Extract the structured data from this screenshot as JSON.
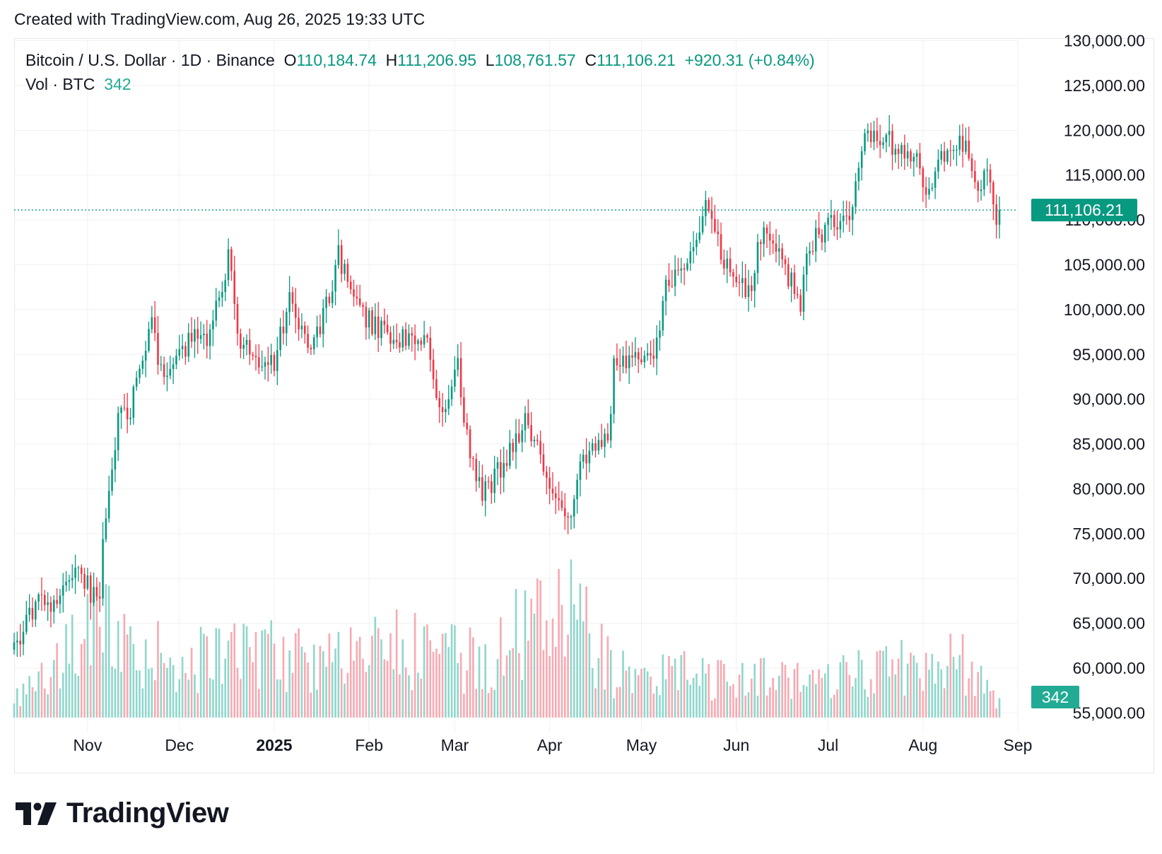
{
  "header": {
    "created_text": "Created with TradingView.com, Aug 26, 2025 19:33 UTC"
  },
  "legend": {
    "symbol_text": "Bitcoin / U.S. Dollar · 1D · Binance",
    "open_label": "O",
    "open_value": "110,184.74",
    "high_label": "H",
    "high_value": "111,206.95",
    "low_label": "L",
    "low_value": "108,761.57",
    "close_label": "C",
    "close_value": "111,106.21",
    "change_text": "+920.31 (+0.84%)",
    "vol_label": "Vol · BTC",
    "vol_value": "342"
  },
  "brand": {
    "name": "TradingView",
    "logo_icon": "tradingview-logo-icon"
  },
  "colors": {
    "up": "#089981",
    "down": "#f23645",
    "vol_up": "#8fd6cb",
    "vol_down": "#f7a9b1",
    "grid": "#f0f1f3",
    "text": "#131722"
  },
  "chart_data": {
    "type": "candlestick",
    "symbol": "BTCUSD",
    "title": "Bitcoin / U.S. Dollar · 1D · Binance",
    "interval": "1D",
    "y_axis": {
      "ticks": [
        55000,
        60000,
        65000,
        70000,
        75000,
        80000,
        85000,
        90000,
        95000,
        100000,
        105000,
        110000,
        115000,
        120000,
        125000,
        130000
      ],
      "tick_labels": [
        "55,000.00",
        "60,000.00",
        "65,000.00",
        "70,000.00",
        "75,000.00",
        "80,000.00",
        "85,000.00",
        "90,000.00",
        "95,000.00",
        "100,000.00",
        "105,000.00",
        "110,000.00",
        "115,000.00",
        "120,000.00",
        "125,000.00",
        "130,000.00"
      ],
      "range": [
        52900,
        130200
      ]
    },
    "x_axis": {
      "tick_labels": [
        "Nov",
        "Dec",
        "2025",
        "Feb",
        "Mar",
        "Apr",
        "May",
        "Jun",
        "Jul",
        "Aug",
        "Sep"
      ],
      "tick_bold": [
        false,
        false,
        true,
        false,
        false,
        false,
        false,
        false,
        false,
        false,
        false
      ],
      "tick_dates": [
        "2024-11-01",
        "2024-12-01",
        "2025-01-01",
        "2025-02-01",
        "2025-03-01",
        "2025-04-01",
        "2025-05-01",
        "2025-06-01",
        "2025-07-01",
        "2025-08-01",
        "2025-09-01"
      ],
      "range": [
        "2024-10-08",
        "2025-09-01"
      ]
    },
    "last_price": 111106.21,
    "last_price_label": "111,106.21",
    "last_volume_label": "342",
    "grid": true,
    "series": [
      {
        "name": "Price",
        "keypoints": [
          [
            "2024-10-08",
            62000
          ],
          [
            "2024-10-15",
            67000
          ],
          [
            "2024-10-22",
            67500
          ],
          [
            "2024-10-28",
            71500
          ],
          [
            "2024-11-02",
            68500
          ],
          [
            "2024-11-05",
            68000
          ],
          [
            "2024-11-06",
            75000
          ],
          [
            "2024-11-11",
            88000
          ],
          [
            "2024-11-15",
            89000
          ],
          [
            "2024-11-22",
            98000
          ],
          [
            "2024-11-26",
            92000
          ],
          [
            "2024-12-05",
            97000
          ],
          [
            "2024-12-10",
            96000
          ],
          [
            "2024-12-17",
            106000
          ],
          [
            "2024-12-20",
            97000
          ],
          [
            "2024-12-26",
            95000
          ],
          [
            "2025-01-01",
            94000
          ],
          [
            "2025-01-06",
            101000
          ],
          [
            "2025-01-13",
            94500
          ],
          [
            "2025-01-20",
            103000
          ],
          [
            "2025-01-22",
            106000
          ],
          [
            "2025-01-27",
            101000
          ],
          [
            "2025-02-03",
            98000
          ],
          [
            "2025-02-10",
            97000
          ],
          [
            "2025-02-20",
            96000
          ],
          [
            "2025-02-25",
            88000
          ],
          [
            "2025-03-02",
            94000
          ],
          [
            "2025-03-04",
            87000
          ],
          [
            "2025-03-10",
            79000
          ],
          [
            "2025-03-16",
            82500
          ],
          [
            "2025-03-24",
            87500
          ],
          [
            "2025-03-30",
            82500
          ],
          [
            "2025-04-06",
            78000
          ],
          [
            "2025-04-08",
            77000
          ],
          [
            "2025-04-12",
            84000
          ],
          [
            "2025-04-20",
            85000
          ],
          [
            "2025-04-22",
            93500
          ],
          [
            "2025-04-30",
            94500
          ],
          [
            "2025-05-05",
            94000
          ],
          [
            "2025-05-09",
            103000
          ],
          [
            "2025-05-15",
            103500
          ],
          [
            "2025-05-22",
            111000
          ],
          [
            "2025-05-30",
            104000
          ],
          [
            "2025-06-05",
            101500
          ],
          [
            "2025-06-10",
            109500
          ],
          [
            "2025-06-17",
            104500
          ],
          [
            "2025-06-22",
            101000
          ],
          [
            "2025-06-25",
            107500
          ],
          [
            "2025-07-03",
            109500
          ],
          [
            "2025-07-09",
            111500
          ],
          [
            "2025-07-12",
            117500
          ],
          [
            "2025-07-14",
            119500
          ],
          [
            "2025-07-22",
            118500
          ],
          [
            "2025-07-30",
            117500
          ],
          [
            "2025-08-02",
            113500
          ],
          [
            "2025-08-07",
            116500
          ],
          [
            "2025-08-14",
            118500
          ],
          [
            "2025-08-16",
            117500
          ],
          [
            "2025-08-19",
            113500
          ],
          [
            "2025-08-22",
            116500
          ],
          [
            "2025-08-25",
            110200
          ],
          [
            "2025-08-26",
            111106
          ]
        ]
      },
      {
        "name": "Vol · BTC",
        "keypoints": [
          [
            "2024-10-08",
            0.18
          ],
          [
            "2024-11-06",
            0.75
          ],
          [
            "2024-11-12",
            0.55
          ],
          [
            "2024-12-05",
            0.45
          ],
          [
            "2024-12-20",
            0.55
          ],
          [
            "2025-01-20",
            0.45
          ],
          [
            "2025-02-03",
            0.6
          ],
          [
            "2025-02-28",
            0.5
          ],
          [
            "2025-03-10",
            0.45
          ],
          [
            "2025-04-07",
            1.0
          ],
          [
            "2025-04-09",
            0.85
          ],
          [
            "2025-04-22",
            0.35
          ],
          [
            "2025-05-23",
            0.35
          ],
          [
            "2025-06-22",
            0.3
          ],
          [
            "2025-07-11",
            0.4
          ],
          [
            "2025-08-14",
            0.45
          ],
          [
            "2025-08-26",
            0.1
          ]
        ]
      }
    ]
  }
}
